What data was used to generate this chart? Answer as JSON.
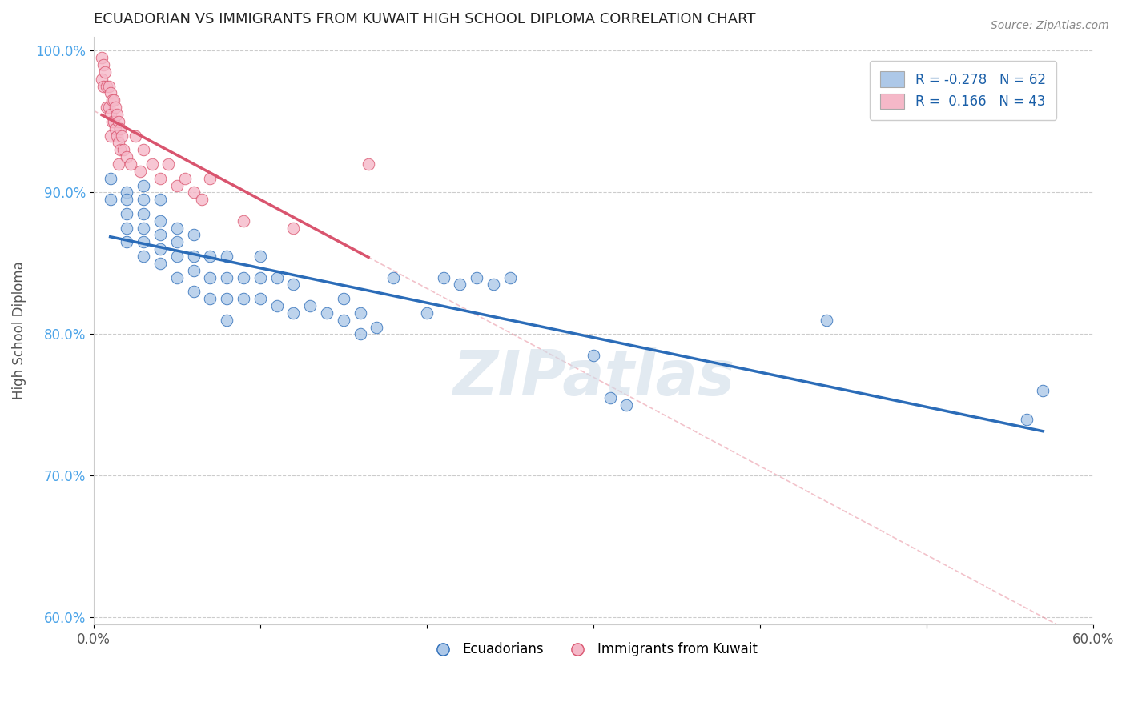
{
  "title": "ECUADORIAN VS IMMIGRANTS FROM KUWAIT HIGH SCHOOL DIPLOMA CORRELATION CHART",
  "source": "Source: ZipAtlas.com",
  "xlabel": "",
  "ylabel": "High School Diploma",
  "xlim": [
    0.0,
    0.6
  ],
  "ylim": [
    0.595,
    1.01
  ],
  "xticks": [
    0.0,
    0.1,
    0.2,
    0.3,
    0.4,
    0.5,
    0.6
  ],
  "xticklabels": [
    "0.0%",
    "",
    "",
    "",
    "",
    "",
    "60.0%"
  ],
  "yticks": [
    0.6,
    0.7,
    0.8,
    0.9,
    1.0
  ],
  "yticklabels": [
    "60.0%",
    "70.0%",
    "80.0%",
    "90.0%",
    "100.0%"
  ],
  "blue_color": "#adc8e8",
  "blue_line_color": "#2b6cb8",
  "pink_color": "#f5b8c8",
  "pink_line_color": "#d9546e",
  "pink_dash_color": "#e8909f",
  "watermark": "ZIPatlas",
  "legend_R_blue": "-0.278",
  "legend_N_blue": "62",
  "legend_R_pink": "0.166",
  "legend_N_pink": "43",
  "blue_x": [
    0.01,
    0.01,
    0.02,
    0.02,
    0.02,
    0.02,
    0.02,
    0.03,
    0.03,
    0.03,
    0.03,
    0.03,
    0.03,
    0.04,
    0.04,
    0.04,
    0.04,
    0.04,
    0.05,
    0.05,
    0.05,
    0.05,
    0.06,
    0.06,
    0.06,
    0.06,
    0.07,
    0.07,
    0.07,
    0.08,
    0.08,
    0.08,
    0.08,
    0.09,
    0.09,
    0.1,
    0.1,
    0.1,
    0.11,
    0.11,
    0.12,
    0.12,
    0.13,
    0.14,
    0.15,
    0.15,
    0.16,
    0.16,
    0.17,
    0.18,
    0.2,
    0.21,
    0.22,
    0.23,
    0.24,
    0.25,
    0.3,
    0.31,
    0.32,
    0.44,
    0.56,
    0.57
  ],
  "blue_y": [
    0.91,
    0.895,
    0.9,
    0.895,
    0.885,
    0.875,
    0.865,
    0.905,
    0.895,
    0.885,
    0.875,
    0.865,
    0.855,
    0.895,
    0.88,
    0.87,
    0.86,
    0.85,
    0.875,
    0.865,
    0.855,
    0.84,
    0.87,
    0.855,
    0.845,
    0.83,
    0.855,
    0.84,
    0.825,
    0.855,
    0.84,
    0.825,
    0.81,
    0.84,
    0.825,
    0.855,
    0.84,
    0.825,
    0.84,
    0.82,
    0.835,
    0.815,
    0.82,
    0.815,
    0.825,
    0.81,
    0.815,
    0.8,
    0.805,
    0.84,
    0.815,
    0.84,
    0.835,
    0.84,
    0.835,
    0.84,
    0.785,
    0.755,
    0.75,
    0.81,
    0.74,
    0.76
  ],
  "pink_x": [
    0.005,
    0.005,
    0.006,
    0.006,
    0.007,
    0.008,
    0.008,
    0.009,
    0.009,
    0.01,
    0.01,
    0.01,
    0.011,
    0.011,
    0.012,
    0.012,
    0.013,
    0.013,
    0.014,
    0.014,
    0.015,
    0.015,
    0.015,
    0.016,
    0.016,
    0.017,
    0.018,
    0.02,
    0.022,
    0.025,
    0.028,
    0.03,
    0.035,
    0.04,
    0.045,
    0.05,
    0.055,
    0.06,
    0.065,
    0.07,
    0.09,
    0.12,
    0.165
  ],
  "pink_y": [
    0.995,
    0.98,
    0.99,
    0.975,
    0.985,
    0.975,
    0.96,
    0.975,
    0.96,
    0.97,
    0.955,
    0.94,
    0.965,
    0.95,
    0.965,
    0.95,
    0.96,
    0.945,
    0.955,
    0.94,
    0.95,
    0.935,
    0.92,
    0.945,
    0.93,
    0.94,
    0.93,
    0.925,
    0.92,
    0.94,
    0.915,
    0.93,
    0.92,
    0.91,
    0.92,
    0.905,
    0.91,
    0.9,
    0.895,
    0.91,
    0.88,
    0.875,
    0.92
  ]
}
